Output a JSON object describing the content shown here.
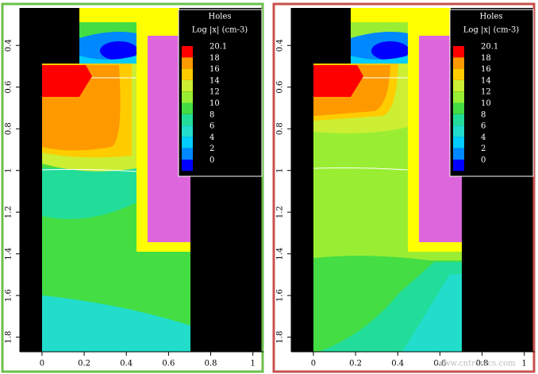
{
  "panels": [
    {
      "title": "Holes",
      "unit_label": "Log |x| (cm-3)",
      "levels": [
        {
          "value": 20.1,
          "color": "#ff0000"
        },
        {
          "value": 18,
          "color": "#ff9900"
        },
        {
          "value": 16,
          "color": "#ffcc00"
        },
        {
          "value": 14,
          "color": "#ccee33"
        },
        {
          "value": 12,
          "color": "#99ee33"
        },
        {
          "value": 10,
          "color": "#44dd44"
        },
        {
          "value": 8,
          "color": "#22dd99"
        },
        {
          "value": 6,
          "color": "#22ddcc"
        },
        {
          "value": 4,
          "color": "#00ccff"
        },
        {
          "value": 2,
          "color": "#0088ff"
        },
        {
          "value": 0,
          "color": "#0000ff"
        }
      ],
      "xlim": [
        -0.105,
        1.05
      ],
      "ylim": [
        0.22,
        1.87
      ],
      "xticks": [
        0,
        0.2,
        0.4,
        0.6,
        0.8,
        1
      ],
      "yticks": [
        0.4,
        0.6,
        0.8,
        1,
        1.2,
        1.4,
        1.6,
        1.8
      ],
      "border_color": "#6cbf4a"
    },
    {
      "title": "Holes",
      "unit_label": "Log |x| (cm-3)",
      "levels": [
        {
          "value": 20.1,
          "color": "#ff0000"
        },
        {
          "value": 18,
          "color": "#ff9900"
        },
        {
          "value": 16,
          "color": "#ffcc00"
        },
        {
          "value": 14,
          "color": "#ccee33"
        },
        {
          "value": 12,
          "color": "#99ee33"
        },
        {
          "value": 10,
          "color": "#44dd44"
        },
        {
          "value": 8,
          "color": "#22dd99"
        },
        {
          "value": 6,
          "color": "#22ddcc"
        },
        {
          "value": 4,
          "color": "#00ccff"
        },
        {
          "value": 2,
          "color": "#0088ff"
        },
        {
          "value": 0,
          "color": "#0000ff"
        }
      ],
      "xlim": [
        -0.105,
        1.05
      ],
      "ylim": [
        0.22,
        1.87
      ],
      "xticks": [
        0,
        0.2,
        0.4,
        0.6,
        0.8,
        1
      ],
      "yticks": [
        0.4,
        0.6,
        0.8,
        1,
        1.2,
        1.4,
        1.6,
        1.8
      ],
      "border_color": "#c9504c"
    }
  ],
  "watermark": "www.cntronics.com"
}
